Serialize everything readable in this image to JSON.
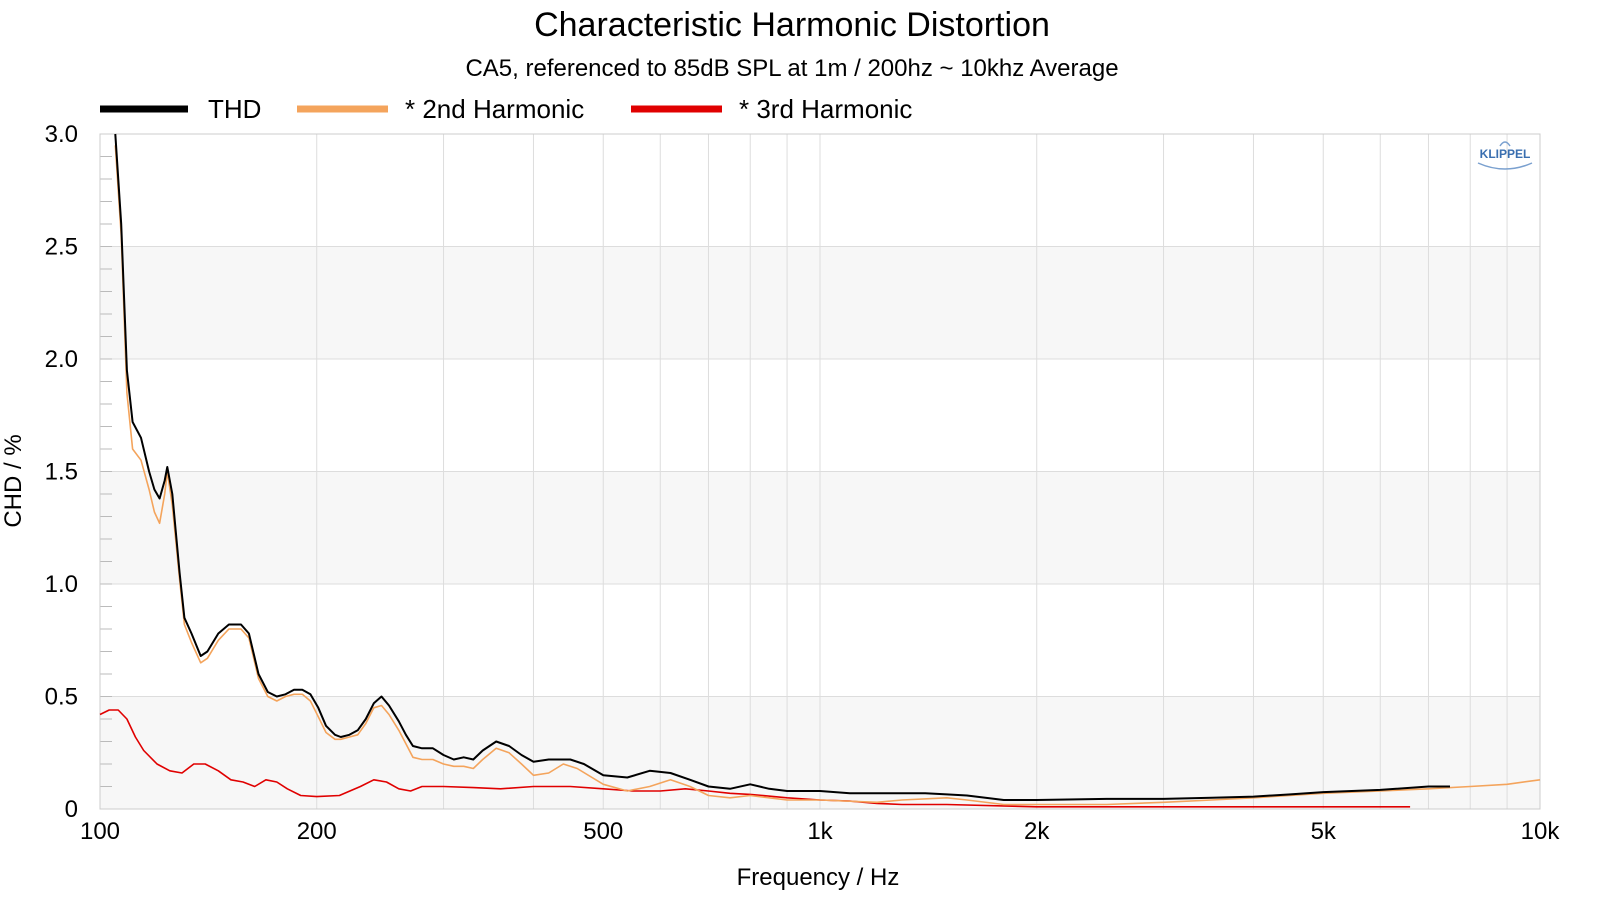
{
  "chart_data": {
    "type": "line",
    "title": "Characteristic Harmonic Distortion",
    "subtitle": "CA5, referenced to 85dB SPL at 1m / 200hz ~ 10khz Average",
    "xlabel": "Frequency / Hz",
    "ylabel": "CHD / %",
    "xscale": "log",
    "xlim": [
      100,
      10000
    ],
    "ylim": [
      0,
      3.0
    ],
    "x_ticks": [
      {
        "value": 100,
        "label": "100"
      },
      {
        "value": 200,
        "label": "200"
      },
      {
        "value": 500,
        "label": "500"
      },
      {
        "value": 1000,
        "label": "1k"
      },
      {
        "value": 2000,
        "label": "2k"
      },
      {
        "value": 5000,
        "label": "5k"
      },
      {
        "value": 10000,
        "label": "10k"
      }
    ],
    "y_ticks": [
      {
        "value": 0,
        "label": "0"
      },
      {
        "value": 0.5,
        "label": "0.5"
      },
      {
        "value": 1.0,
        "label": "1.0"
      },
      {
        "value": 1.5,
        "label": "1.5"
      },
      {
        "value": 2.0,
        "label": "2.0"
      },
      {
        "value": 2.5,
        "label": "2.5"
      },
      {
        "value": 3.0,
        "label": "3.0"
      }
    ],
    "grid": true,
    "legend_position": "top-left",
    "logo": "KLIPPEL",
    "series": [
      {
        "name": "THD",
        "color": "#000000",
        "points": [
          [
            105,
            3.0
          ],
          [
            107,
            2.6
          ],
          [
            109,
            1.95
          ],
          [
            111,
            1.72
          ],
          [
            114,
            1.65
          ],
          [
            117,
            1.5
          ],
          [
            119,
            1.42
          ],
          [
            121,
            1.38
          ],
          [
            123,
            1.46
          ],
          [
            124,
            1.52
          ],
          [
            126,
            1.4
          ],
          [
            129,
            1.05
          ],
          [
            131,
            0.85
          ],
          [
            134,
            0.78
          ],
          [
            138,
            0.68
          ],
          [
            141,
            0.7
          ],
          [
            146,
            0.78
          ],
          [
            151,
            0.82
          ],
          [
            157,
            0.82
          ],
          [
            161,
            0.78
          ],
          [
            166,
            0.6
          ],
          [
            171,
            0.52
          ],
          [
            176,
            0.5
          ],
          [
            181,
            0.51
          ],
          [
            186,
            0.53
          ],
          [
            191,
            0.53
          ],
          [
            196,
            0.51
          ],
          [
            201,
            0.45
          ],
          [
            206,
            0.37
          ],
          [
            212,
            0.33
          ],
          [
            216,
            0.32
          ],
          [
            222,
            0.33
          ],
          [
            228,
            0.35
          ],
          [
            234,
            0.4
          ],
          [
            240,
            0.47
          ],
          [
            246,
            0.5
          ],
          [
            252,
            0.46
          ],
          [
            260,
            0.39
          ],
          [
            266,
            0.33
          ],
          [
            272,
            0.28
          ],
          [
            280,
            0.27
          ],
          [
            290,
            0.27
          ],
          [
            300,
            0.24
          ],
          [
            310,
            0.22
          ],
          [
            320,
            0.23
          ],
          [
            330,
            0.22
          ],
          [
            340,
            0.26
          ],
          [
            355,
            0.3
          ],
          [
            370,
            0.28
          ],
          [
            385,
            0.24
          ],
          [
            400,
            0.21
          ],
          [
            420,
            0.22
          ],
          [
            450,
            0.22
          ],
          [
            470,
            0.2
          ],
          [
            500,
            0.15
          ],
          [
            540,
            0.14
          ],
          [
            580,
            0.17
          ],
          [
            620,
            0.16
          ],
          [
            660,
            0.13
          ],
          [
            700,
            0.1
          ],
          [
            750,
            0.09
          ],
          [
            800,
            0.11
          ],
          [
            850,
            0.09
          ],
          [
            900,
            0.08
          ],
          [
            1000,
            0.08
          ],
          [
            1100,
            0.07
          ],
          [
            1200,
            0.07
          ],
          [
            1300,
            0.07
          ],
          [
            1400,
            0.07
          ],
          [
            1500,
            0.065
          ],
          [
            1600,
            0.06
          ],
          [
            1800,
            0.04
          ],
          [
            2000,
            0.04
          ],
          [
            2500,
            0.045
          ],
          [
            3000,
            0.045
          ],
          [
            3500,
            0.05
          ],
          [
            4000,
            0.055
          ],
          [
            4500,
            0.065
          ],
          [
            5000,
            0.075
          ],
          [
            6000,
            0.085
          ],
          [
            7000,
            0.1
          ],
          [
            7500,
            0.1
          ]
        ]
      },
      {
        "name": "* 2nd Harmonic",
        "color": "#f4a45c",
        "points": [
          [
            105,
            2.95
          ],
          [
            107,
            2.55
          ],
          [
            109,
            1.85
          ],
          [
            111,
            1.6
          ],
          [
            114,
            1.55
          ],
          [
            117,
            1.42
          ],
          [
            119,
            1.32
          ],
          [
            121,
            1.27
          ],
          [
            123,
            1.4
          ],
          [
            124,
            1.5
          ],
          [
            126,
            1.35
          ],
          [
            129,
            1.02
          ],
          [
            131,
            0.82
          ],
          [
            134,
            0.74
          ],
          [
            138,
            0.65
          ],
          [
            141,
            0.67
          ],
          [
            146,
            0.75
          ],
          [
            151,
            0.8
          ],
          [
            157,
            0.8
          ],
          [
            161,
            0.76
          ],
          [
            166,
            0.58
          ],
          [
            171,
            0.5
          ],
          [
            176,
            0.48
          ],
          [
            181,
            0.5
          ],
          [
            186,
            0.51
          ],
          [
            191,
            0.51
          ],
          [
            196,
            0.48
          ],
          [
            201,
            0.41
          ],
          [
            206,
            0.34
          ],
          [
            212,
            0.31
          ],
          [
            216,
            0.31
          ],
          [
            222,
            0.32
          ],
          [
            228,
            0.33
          ],
          [
            234,
            0.38
          ],
          [
            240,
            0.45
          ],
          [
            246,
            0.46
          ],
          [
            252,
            0.42
          ],
          [
            260,
            0.35
          ],
          [
            266,
            0.29
          ],
          [
            272,
            0.23
          ],
          [
            280,
            0.22
          ],
          [
            290,
            0.22
          ],
          [
            300,
            0.2
          ],
          [
            310,
            0.19
          ],
          [
            320,
            0.19
          ],
          [
            330,
            0.18
          ],
          [
            340,
            0.22
          ],
          [
            355,
            0.27
          ],
          [
            370,
            0.25
          ],
          [
            385,
            0.2
          ],
          [
            400,
            0.15
          ],
          [
            420,
            0.16
          ],
          [
            440,
            0.2
          ],
          [
            460,
            0.18
          ],
          [
            500,
            0.11
          ],
          [
            540,
            0.08
          ],
          [
            580,
            0.1
          ],
          [
            620,
            0.13
          ],
          [
            660,
            0.1
          ],
          [
            700,
            0.06
          ],
          [
            750,
            0.05
          ],
          [
            800,
            0.06
          ],
          [
            850,
            0.05
          ],
          [
            900,
            0.04
          ],
          [
            1000,
            0.04
          ],
          [
            1200,
            0.03
          ],
          [
            1300,
            0.04
          ],
          [
            1500,
            0.05
          ],
          [
            1600,
            0.04
          ],
          [
            1800,
            0.02
          ],
          [
            2000,
            0.02
          ],
          [
            2500,
            0.02
          ],
          [
            3000,
            0.03
          ],
          [
            3500,
            0.04
          ],
          [
            4000,
            0.05
          ],
          [
            5000,
            0.07
          ],
          [
            6000,
            0.08
          ],
          [
            7000,
            0.09
          ],
          [
            8000,
            0.1
          ],
          [
            9000,
            0.11
          ],
          [
            10000,
            0.13
          ]
        ]
      },
      {
        "name": "* 3rd Harmonic",
        "color": "#e00000",
        "points": [
          [
            100,
            0.42
          ],
          [
            103,
            0.44
          ],
          [
            106,
            0.44
          ],
          [
            109,
            0.4
          ],
          [
            112,
            0.32
          ],
          [
            115,
            0.26
          ],
          [
            120,
            0.2
          ],
          [
            125,
            0.17
          ],
          [
            130,
            0.16
          ],
          [
            135,
            0.2
          ],
          [
            140,
            0.2
          ],
          [
            146,
            0.17
          ],
          [
            152,
            0.13
          ],
          [
            158,
            0.12
          ],
          [
            164,
            0.1
          ],
          [
            170,
            0.13
          ],
          [
            176,
            0.12
          ],
          [
            182,
            0.09
          ],
          [
            190,
            0.06
          ],
          [
            200,
            0.055
          ],
          [
            215,
            0.06
          ],
          [
            230,
            0.1
          ],
          [
            240,
            0.13
          ],
          [
            250,
            0.12
          ],
          [
            260,
            0.09
          ],
          [
            270,
            0.08
          ],
          [
            280,
            0.1
          ],
          [
            300,
            0.1
          ],
          [
            330,
            0.095
          ],
          [
            360,
            0.09
          ],
          [
            400,
            0.1
          ],
          [
            450,
            0.1
          ],
          [
            500,
            0.09
          ],
          [
            550,
            0.08
          ],
          [
            600,
            0.08
          ],
          [
            650,
            0.09
          ],
          [
            700,
            0.08
          ],
          [
            750,
            0.07
          ],
          [
            800,
            0.065
          ],
          [
            900,
            0.05
          ],
          [
            1000,
            0.04
          ],
          [
            1100,
            0.035
          ],
          [
            1200,
            0.025
          ],
          [
            1300,
            0.02
          ],
          [
            1500,
            0.02
          ],
          [
            2000,
            0.01
          ],
          [
            3000,
            0.01
          ],
          [
            4000,
            0.01
          ],
          [
            5000,
            0.01
          ],
          [
            6000,
            0.01
          ],
          [
            6600,
            0.01
          ]
        ]
      }
    ]
  }
}
